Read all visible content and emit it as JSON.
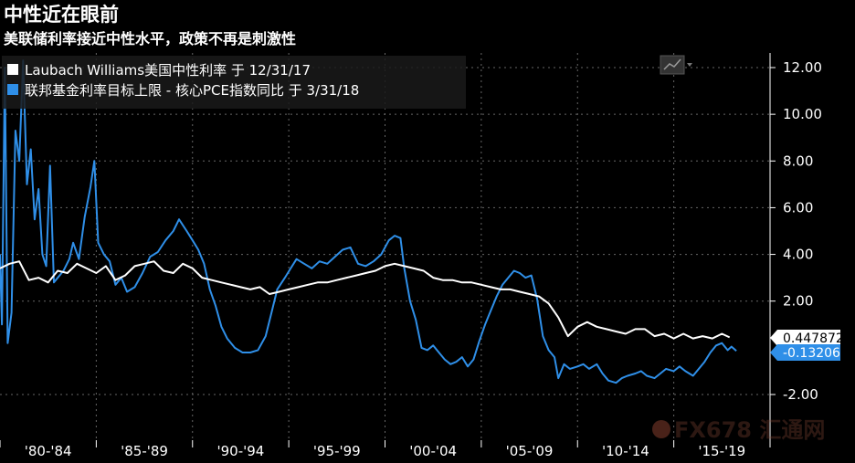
{
  "title": "中性近在眼前",
  "subtitle": "美联储利率接近中性水平，政策不再是刺激性",
  "watermark": "FX678 汇通网",
  "chart_data": {
    "type": "line",
    "title": "中性近在眼前",
    "subtitle": "美联储利率接近中性水平，政策不再是刺激性",
    "x_tick_labels": [
      "'80-'84",
      "'85-'89",
      "'90-'94",
      "'95-'99",
      "'00-'04",
      "'05-'09",
      "'10-'14",
      "'15-'19"
    ],
    "y_tick_labels": [
      "12.00",
      "10.00",
      "8.00",
      "6.00",
      "4.00",
      "2.00",
      "-2.00"
    ],
    "xlim": [
      1980,
      2020
    ],
    "ylim": [
      -3.0,
      12.8
    ],
    "grid": true,
    "legend_position": "top-left",
    "series": [
      {
        "name": "Laubach Williams美国中性利率 于 12/31/17",
        "color": "#ffffff",
        "last_value_label": "0.447872",
        "points": [
          [
            1980.0,
            3.4
          ],
          [
            1980.5,
            3.6
          ],
          [
            1981.0,
            3.7
          ],
          [
            1981.5,
            2.9
          ],
          [
            1982.0,
            3.0
          ],
          [
            1982.5,
            2.8
          ],
          [
            1983.0,
            3.3
          ],
          [
            1983.5,
            3.2
          ],
          [
            1984.0,
            3.6
          ],
          [
            1984.5,
            3.4
          ],
          [
            1985.0,
            3.2
          ],
          [
            1985.5,
            3.5
          ],
          [
            1986.0,
            2.9
          ],
          [
            1986.5,
            3.1
          ],
          [
            1987.0,
            3.5
          ],
          [
            1987.5,
            3.6
          ],
          [
            1988.0,
            3.7
          ],
          [
            1988.5,
            3.3
          ],
          [
            1989.0,
            3.2
          ],
          [
            1989.5,
            3.6
          ],
          [
            1990.0,
            3.4
          ],
          [
            1990.5,
            3.0
          ],
          [
            1991.0,
            2.9
          ],
          [
            1991.5,
            2.8
          ],
          [
            1992.0,
            2.7
          ],
          [
            1992.5,
            2.6
          ],
          [
            1993.0,
            2.5
          ],
          [
            1993.5,
            2.6
          ],
          [
            1994.0,
            2.3
          ],
          [
            1994.5,
            2.4
          ],
          [
            1995.0,
            2.5
          ],
          [
            1995.5,
            2.6
          ],
          [
            1996.0,
            2.7
          ],
          [
            1996.5,
            2.8
          ],
          [
            1997.0,
            2.8
          ],
          [
            1997.5,
            2.9
          ],
          [
            1998.0,
            3.0
          ],
          [
            1998.5,
            3.1
          ],
          [
            1999.0,
            3.2
          ],
          [
            1999.5,
            3.3
          ],
          [
            2000.0,
            3.5
          ],
          [
            2000.5,
            3.6
          ],
          [
            2001.0,
            3.5
          ],
          [
            2001.5,
            3.4
          ],
          [
            2002.0,
            3.3
          ],
          [
            2002.5,
            3.0
          ],
          [
            2003.0,
            2.9
          ],
          [
            2003.5,
            2.9
          ],
          [
            2004.0,
            2.8
          ],
          [
            2004.5,
            2.8
          ],
          [
            2005.0,
            2.7
          ],
          [
            2005.5,
            2.6
          ],
          [
            2006.0,
            2.5
          ],
          [
            2006.5,
            2.5
          ],
          [
            2007.0,
            2.4
          ],
          [
            2007.5,
            2.3
          ],
          [
            2008.0,
            2.2
          ],
          [
            2008.5,
            1.9
          ],
          [
            2009.0,
            1.3
          ],
          [
            2009.5,
            0.5
          ],
          [
            2010.0,
            0.9
          ],
          [
            2010.5,
            1.1
          ],
          [
            2011.0,
            0.9
          ],
          [
            2011.5,
            0.8
          ],
          [
            2012.0,
            0.7
          ],
          [
            2012.5,
            0.6
          ],
          [
            2013.0,
            0.8
          ],
          [
            2013.5,
            0.8
          ],
          [
            2014.0,
            0.5
          ],
          [
            2014.5,
            0.6
          ],
          [
            2015.0,
            0.4
          ],
          [
            2015.5,
            0.6
          ],
          [
            2016.0,
            0.4
          ],
          [
            2016.5,
            0.5
          ],
          [
            2017.0,
            0.4
          ],
          [
            2017.5,
            0.6
          ],
          [
            2017.9,
            0.45
          ]
        ]
      },
      {
        "name": "联邦基金利率目标上限 - 核心PCE指数同比 于 3/31/18",
        "color": "#2f8fe8",
        "last_value_label": "-0.13206",
        "points": [
          [
            1980.0,
            4.0
          ],
          [
            1980.1,
            1.0
          ],
          [
            1980.25,
            12.0
          ],
          [
            1980.4,
            0.2
          ],
          [
            1980.6,
            1.5
          ],
          [
            1980.8,
            9.3
          ],
          [
            1981.0,
            8.0
          ],
          [
            1981.2,
            12.3
          ],
          [
            1981.4,
            7.0
          ],
          [
            1981.6,
            8.5
          ],
          [
            1981.8,
            5.5
          ],
          [
            1982.0,
            6.8
          ],
          [
            1982.2,
            4.0
          ],
          [
            1982.4,
            3.5
          ],
          [
            1982.6,
            7.8
          ],
          [
            1982.8,
            2.8
          ],
          [
            1983.0,
            3.0
          ],
          [
            1983.3,
            3.3
          ],
          [
            1983.6,
            3.8
          ],
          [
            1983.8,
            4.5
          ],
          [
            1984.1,
            3.8
          ],
          [
            1984.4,
            5.6
          ],
          [
            1984.7,
            6.9
          ],
          [
            1984.9,
            8.0
          ],
          [
            1985.1,
            4.5
          ],
          [
            1985.4,
            4.0
          ],
          [
            1985.7,
            3.7
          ],
          [
            1986.0,
            2.7
          ],
          [
            1986.3,
            3.0
          ],
          [
            1986.6,
            2.4
          ],
          [
            1987.0,
            2.6
          ],
          [
            1987.4,
            3.2
          ],
          [
            1987.8,
            3.9
          ],
          [
            1988.2,
            4.1
          ],
          [
            1988.6,
            4.6
          ],
          [
            1989.0,
            5.0
          ],
          [
            1989.3,
            5.5
          ],
          [
            1989.7,
            5.0
          ],
          [
            1990.0,
            4.6
          ],
          [
            1990.3,
            4.2
          ],
          [
            1990.6,
            3.6
          ],
          [
            1990.9,
            2.5
          ],
          [
            1991.2,
            1.8
          ],
          [
            1991.5,
            0.9
          ],
          [
            1991.8,
            0.4
          ],
          [
            1992.2,
            0.0
          ],
          [
            1992.6,
            -0.2
          ],
          [
            1993.0,
            -0.2
          ],
          [
            1993.4,
            -0.1
          ],
          [
            1993.8,
            0.5
          ],
          [
            1994.1,
            1.5
          ],
          [
            1994.4,
            2.5
          ],
          [
            1994.8,
            3.0
          ],
          [
            1995.1,
            3.4
          ],
          [
            1995.4,
            3.8
          ],
          [
            1995.8,
            3.6
          ],
          [
            1996.2,
            3.4
          ],
          [
            1996.6,
            3.7
          ],
          [
            1997.0,
            3.6
          ],
          [
            1997.4,
            3.9
          ],
          [
            1997.8,
            4.2
          ],
          [
            1998.2,
            4.3
          ],
          [
            1998.6,
            3.6
          ],
          [
            1999.0,
            3.5
          ],
          [
            1999.4,
            3.7
          ],
          [
            1999.8,
            4.0
          ],
          [
            2000.2,
            4.6
          ],
          [
            2000.5,
            4.8
          ],
          [
            2000.8,
            4.7
          ],
          [
            2001.0,
            3.4
          ],
          [
            2001.3,
            2.0
          ],
          [
            2001.6,
            1.2
          ],
          [
            2001.9,
            0.0
          ],
          [
            2002.2,
            -0.1
          ],
          [
            2002.5,
            0.1
          ],
          [
            2002.8,
            -0.2
          ],
          [
            2003.1,
            -0.5
          ],
          [
            2003.4,
            -0.7
          ],
          [
            2003.7,
            -0.6
          ],
          [
            2004.0,
            -0.4
          ],
          [
            2004.3,
            -0.8
          ],
          [
            2004.6,
            -0.5
          ],
          [
            2004.9,
            0.3
          ],
          [
            2005.2,
            1.0
          ],
          [
            2005.5,
            1.6
          ],
          [
            2005.8,
            2.2
          ],
          [
            2006.1,
            2.7
          ],
          [
            2006.4,
            3.0
          ],
          [
            2006.7,
            3.3
          ],
          [
            2007.0,
            3.2
          ],
          [
            2007.3,
            3.0
          ],
          [
            2007.6,
            3.1
          ],
          [
            2007.9,
            2.1
          ],
          [
            2008.2,
            0.5
          ],
          [
            2008.5,
            -0.1
          ],
          [
            2008.8,
            -0.4
          ],
          [
            2009.0,
            -1.3
          ],
          [
            2009.3,
            -0.7
          ],
          [
            2009.6,
            -0.9
          ],
          [
            2010.0,
            -0.8
          ],
          [
            2010.3,
            -0.7
          ],
          [
            2010.6,
            -0.9
          ],
          [
            2011.0,
            -0.7
          ],
          [
            2011.3,
            -1.1
          ],
          [
            2011.6,
            -1.4
          ],
          [
            2012.0,
            -1.5
          ],
          [
            2012.3,
            -1.3
          ],
          [
            2012.6,
            -1.2
          ],
          [
            2013.0,
            -1.1
          ],
          [
            2013.3,
            -1.0
          ],
          [
            2013.6,
            -1.2
          ],
          [
            2014.0,
            -1.3
          ],
          [
            2014.3,
            -1.1
          ],
          [
            2014.6,
            -0.9
          ],
          [
            2015.0,
            -1.0
          ],
          [
            2015.3,
            -0.8
          ],
          [
            2015.6,
            -1.0
          ],
          [
            2016.0,
            -1.2
          ],
          [
            2016.3,
            -0.9
          ],
          [
            2016.6,
            -0.6
          ],
          [
            2016.9,
            -0.2
          ],
          [
            2017.2,
            0.1
          ],
          [
            2017.5,
            0.2
          ],
          [
            2017.8,
            -0.1
          ],
          [
            2018.0,
            0.05
          ],
          [
            2018.25,
            -0.13
          ]
        ]
      }
    ]
  }
}
